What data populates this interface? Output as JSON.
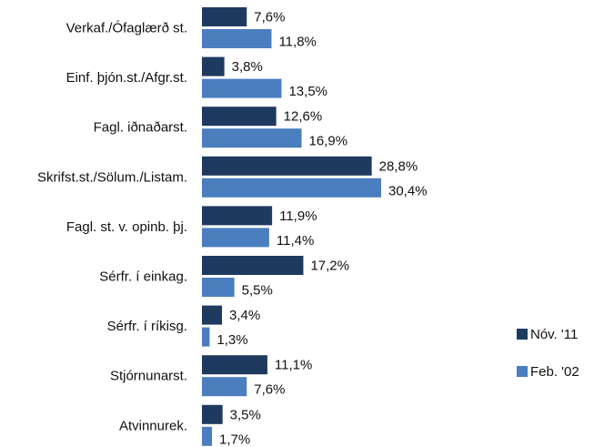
{
  "chart_data": {
    "type": "bar",
    "orientation": "horizontal",
    "categories": [
      "Verkaf./Ófaglærð st.",
      "Einf. þjón.st./Afgr.st.",
      "Fagl. iðnaðarst.",
      "Skrifst.st./Sölum./Listam.",
      "Fagl. st. v. opinb. þj.",
      "Sérfr. í einkag.",
      "Sérfr. í ríkisg.",
      "Stjórnunarst.",
      "Atvinnurek."
    ],
    "series": [
      {
        "name": "Nóv. '11",
        "color": "#1f3a5f",
        "values": [
          7.6,
          3.8,
          12.6,
          28.8,
          11.9,
          17.2,
          3.4,
          11.1,
          3.5
        ],
        "value_labels": [
          "7,6%",
          "3,8%",
          "12,6%",
          "28,8%",
          "11,9%",
          "17,2%",
          "3,4%",
          "11,1%",
          "3,5%"
        ]
      },
      {
        "name": "Feb. '02",
        "color": "#4a7ebf",
        "values": [
          11.8,
          13.5,
          16.9,
          30.4,
          11.4,
          5.5,
          1.3,
          7.6,
          1.7
        ],
        "value_labels": [
          "11,8%",
          "13,5%",
          "16,9%",
          "30,4%",
          "11,4%",
          "5,5%",
          "1,3%",
          "7,6%",
          "1,7%"
        ]
      }
    ],
    "legend": "right"
  }
}
